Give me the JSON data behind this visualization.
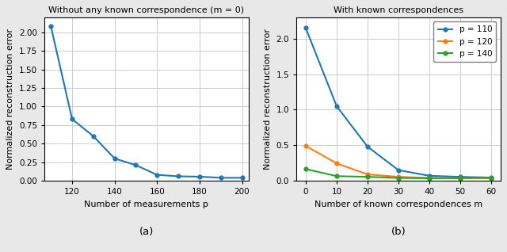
{
  "left": {
    "title": "Without any known correspondence (m = 0)",
    "xlabel": "Number of measurements p",
    "ylabel": "Normalized reconstruction error",
    "caption": "(a)",
    "x": [
      110,
      120,
      130,
      140,
      150,
      160,
      170,
      180,
      190,
      200
    ],
    "y": [
      2.08,
      0.83,
      0.6,
      0.3,
      0.21,
      0.08,
      0.06,
      0.055,
      0.04,
      0.04
    ],
    "color": "#1f77b4",
    "ylim": [
      0,
      2.2
    ],
    "xlim": [
      107,
      203
    ],
    "xticks": [
      120,
      140,
      160,
      180,
      200
    ]
  },
  "right": {
    "title": "With known correspondences",
    "xlabel": "Number of known correspondences m",
    "ylabel": "Normalized reconstruction error",
    "caption": "(b)",
    "xlim": [
      -3,
      63
    ],
    "ylim": [
      0,
      2.3
    ],
    "xticks": [
      0,
      10,
      20,
      30,
      40,
      50,
      60
    ],
    "series": [
      {
        "label": "p = 110",
        "color": "#1f77b4",
        "x": [
          0,
          10,
          20,
          30,
          40,
          50,
          60
        ],
        "y": [
          2.15,
          1.05,
          0.48,
          0.15,
          0.07,
          0.055,
          0.045
        ]
      },
      {
        "label": "p = 120",
        "color": "#ff7f0e",
        "x": [
          0,
          10,
          20,
          30,
          40,
          50,
          60
        ],
        "y": [
          0.49,
          0.245,
          0.09,
          0.055,
          0.04,
          0.035,
          0.04
        ]
      },
      {
        "label": "p = 140",
        "color": "#2ca02c",
        "x": [
          0,
          10,
          20,
          30,
          40,
          50,
          60
        ],
        "y": [
          0.165,
          0.065,
          0.055,
          0.04,
          0.035,
          0.04,
          0.04
        ]
      }
    ]
  },
  "fig_facecolor": "#e8e8e8",
  "axes_facecolor": "#ffffff",
  "title_fontsize": 8.0,
  "label_fontsize": 8.0,
  "tick_fontsize": 7.5,
  "caption_fontsize": 9.5,
  "marker_size": 3.5,
  "line_width": 1.5,
  "grid_color": "#cccccc",
  "grid_lw": 0.7
}
